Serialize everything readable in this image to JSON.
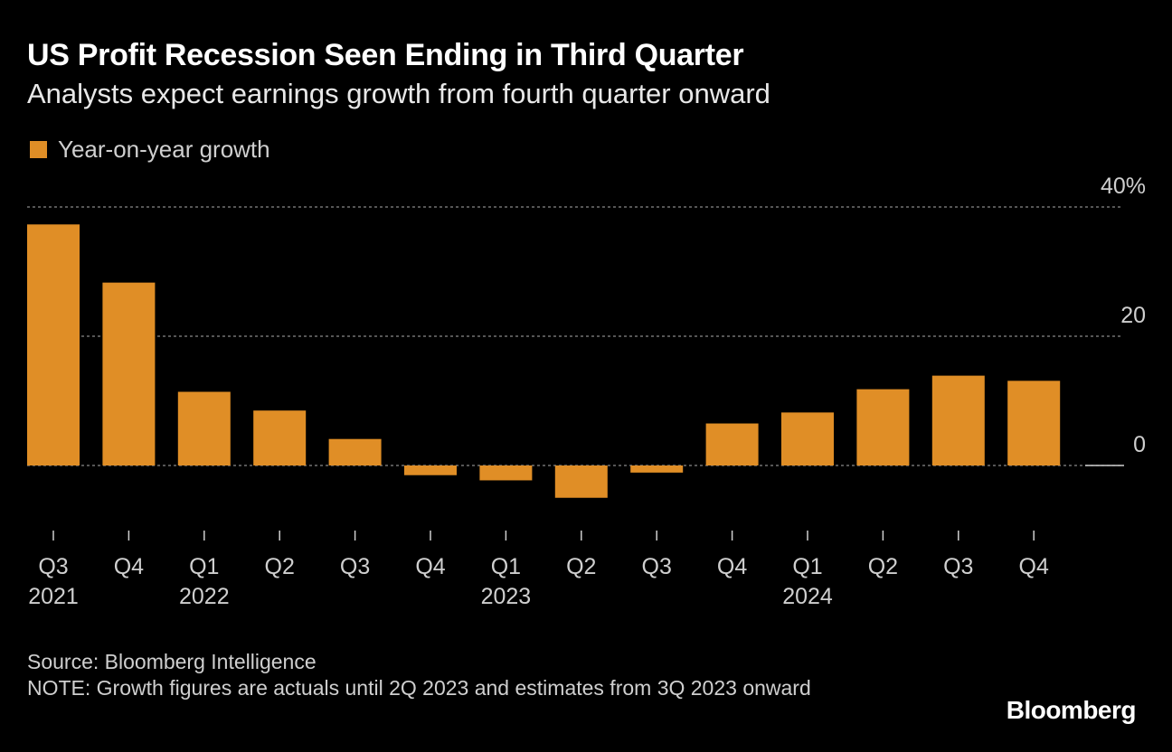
{
  "header": {
    "title": "US Profit Recession Seen Ending in Third Quarter",
    "subtitle": "Analysts expect earnings growth from fourth quarter onward"
  },
  "legend": {
    "label": "Year-on-year growth",
    "color": "#e08e26"
  },
  "footer": {
    "source": "Source: Bloomberg Intelligence",
    "note": "NOTE: Growth figures are actuals until 2Q 2023 and estimates from 3Q 2023 onward"
  },
  "brand": "Bloomberg",
  "chart_data": {
    "type": "bar",
    "categories": [
      "Q3",
      "Q4",
      "Q1",
      "Q2",
      "Q3",
      "Q4",
      "Q1",
      "Q2",
      "Q3",
      "Q4",
      "Q1",
      "Q2",
      "Q3",
      "Q4"
    ],
    "year_labels": [
      "2021",
      "",
      "2022",
      "",
      "",
      "",
      "2023",
      "",
      "",
      "",
      "2024",
      "",
      "",
      ""
    ],
    "series": [
      {
        "name": "Year-on-year growth",
        "values": [
          37.3,
          28.3,
          11.4,
          8.5,
          4.1,
          -1.5,
          -2.3,
          -5.0,
          -1.1,
          6.5,
          8.2,
          11.8,
          13.9,
          13.1
        ]
      }
    ],
    "ylim": [
      -7,
      40
    ],
    "yticks": [
      0,
      20,
      40
    ],
    "ytick_labels": [
      "0",
      "20",
      "40%"
    ],
    "grid": true,
    "legend_position": "top-left"
  }
}
